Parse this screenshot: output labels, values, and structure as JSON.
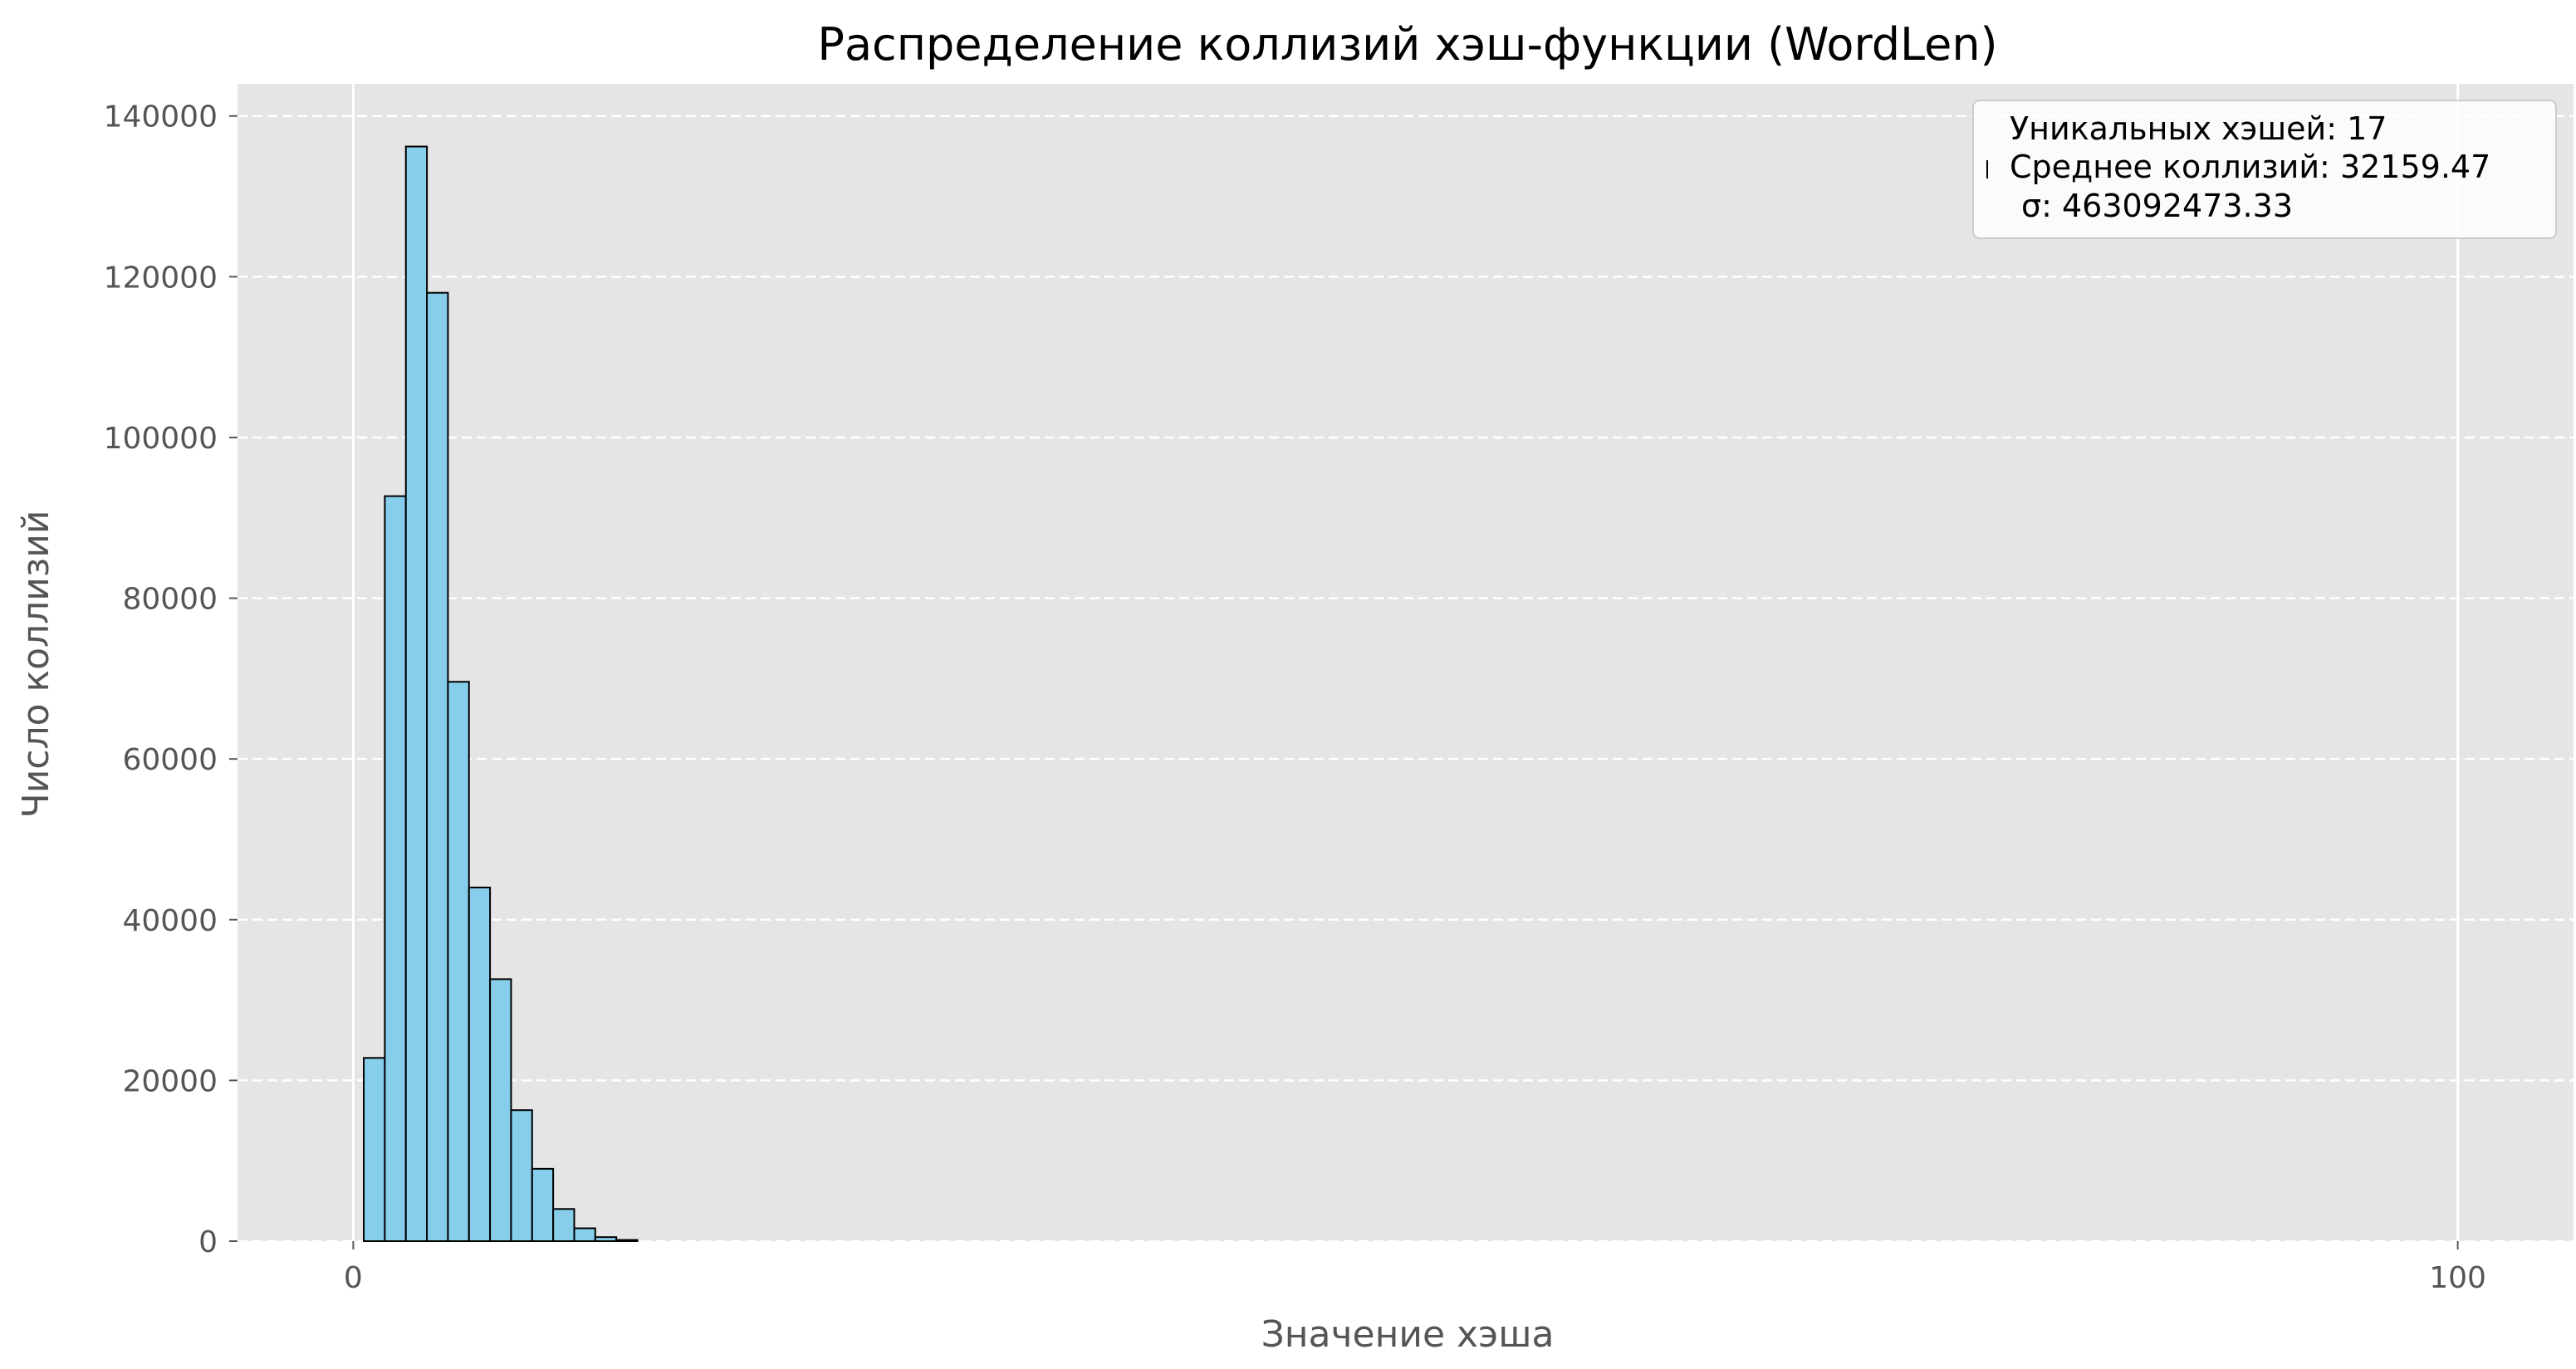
{
  "chart_data": {
    "type": "bar",
    "title": "Распределение коллизий хэш-функции (WordLen)",
    "xlabel": "Значение хэша",
    "ylabel": "Число коллизий",
    "xlim": [
      -5.5,
      105.5
    ],
    "ylim": [
      0,
      144000
    ],
    "xticks": [
      0,
      100
    ],
    "yticks": [
      0,
      20000,
      40000,
      60000,
      80000,
      100000,
      120000,
      140000
    ],
    "grid": true,
    "bin_width": 1,
    "bins": [
      {
        "x": 1,
        "value": 22800
      },
      {
        "x": 2,
        "value": 92700
      },
      {
        "x": 3,
        "value": 136200
      },
      {
        "x": 4,
        "value": 118000
      },
      {
        "x": 5,
        "value": 69600
      },
      {
        "x": 6,
        "value": 44000
      },
      {
        "x": 7,
        "value": 32600
      },
      {
        "x": 8,
        "value": 16300
      },
      {
        "x": 9,
        "value": 9000
      },
      {
        "x": 10,
        "value": 4000
      },
      {
        "x": 11,
        "value": 1600
      },
      {
        "x": 12,
        "value": 500
      },
      {
        "x": 13,
        "value": 150
      }
    ],
    "legend": {
      "placement": "top-right",
      "lines": [
        "Уникальных хэшей: 17",
        "Среднее коллизий: 32159.47",
        "σ: 463092473.33"
      ]
    },
    "colors": {
      "bar_fill": "#87ceeb",
      "bar_edge": "#000000",
      "plot_background": "#e5e5e5",
      "grid": "#ffffff"
    }
  }
}
